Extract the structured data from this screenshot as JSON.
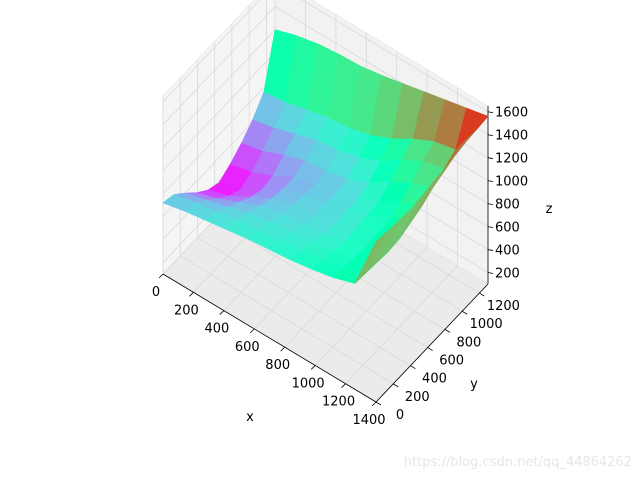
{
  "chart_data": {
    "type": "surface3d",
    "colormap": "rainbow",
    "xlabel": "x",
    "ylabel": "y",
    "zlabel": "z",
    "x_ticks": [
      0,
      200,
      400,
      600,
      800,
      1000,
      1200,
      1400
    ],
    "y_ticks": [
      0,
      200,
      400,
      600,
      800,
      1000,
      1200
    ],
    "z_ticks": [
      200,
      400,
      600,
      800,
      1000,
      1200,
      1400,
      1600
    ],
    "xlim": [
      0,
      1400
    ],
    "ylim": [
      0,
      1300
    ],
    "zlim": [
      100,
      1650
    ],
    "grid": true,
    "x": [
      0,
      140,
      280,
      420,
      560,
      700,
      840,
      980,
      1120,
      1260,
      1400
    ],
    "y": [
      0,
      130,
      260,
      390,
      520,
      650,
      780,
      910,
      1040,
      1170,
      1300
    ],
    "z": [
      [
        720,
        760,
        790,
        820,
        850,
        870,
        890,
        920,
        960,
        1020,
        1500
      ],
      [
        690,
        730,
        760,
        800,
        820,
        840,
        870,
        900,
        950,
        1010,
        1480
      ],
      [
        600,
        650,
        700,
        760,
        790,
        810,
        840,
        880,
        930,
        1000,
        1470
      ],
      [
        500,
        560,
        640,
        720,
        760,
        780,
        810,
        860,
        930,
        990,
        1460
      ],
      [
        420,
        480,
        580,
        680,
        740,
        760,
        790,
        860,
        940,
        1000,
        1470
      ],
      [
        380,
        430,
        540,
        660,
        720,
        760,
        800,
        880,
        960,
        1040,
        1490
      ],
      [
        440,
        480,
        560,
        660,
        700,
        740,
        800,
        900,
        1000,
        1080,
        1500
      ],
      [
        520,
        560,
        640,
        700,
        720,
        760,
        840,
        960,
        1060,
        1140,
        1520
      ],
      [
        620,
        660,
        720,
        780,
        800,
        850,
        930,
        1050,
        1150,
        1200,
        1540
      ],
      [
        760,
        780,
        830,
        870,
        890,
        940,
        1020,
        1130,
        1220,
        1260,
        1550
      ],
      [
        1200,
        1260,
        1300,
        1320,
        1330,
        1360,
        1400,
        1440,
        1480,
        1520,
        1560
      ]
    ]
  },
  "watermark": "https://blog.csdn.net/qq_44864262"
}
